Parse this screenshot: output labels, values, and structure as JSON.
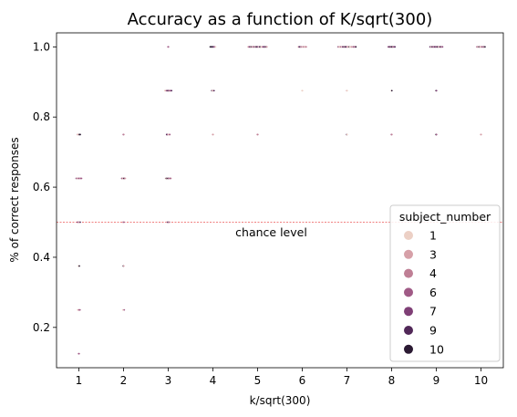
{
  "chart_data": {
    "type": "scatter",
    "title": "Accuracy as a function of K/sqrt(300)",
    "xlabel": "k/sqrt(300)",
    "ylabel": "% of correct responses",
    "xlim": [
      0.5,
      10.5
    ],
    "ylim": [
      0.085,
      1.04
    ],
    "xticks": [
      "1",
      "2",
      "3",
      "4",
      "5",
      "6",
      "7",
      "8",
      "9",
      "10"
    ],
    "yticks": [
      "0.2",
      "0.4",
      "0.6",
      "0.8",
      "1.0"
    ],
    "grid": false,
    "legend": {
      "title": "subject_number",
      "placement": "lower-right",
      "entries": [
        {
          "label": "1",
          "color": "#ecd0c5"
        },
        {
          "label": "3",
          "color": "#d6a0a8"
        },
        {
          "label": "4",
          "color": "#bf7f95"
        },
        {
          "label": "6",
          "color": "#a05a86"
        },
        {
          "label": "7",
          "color": "#7f3f76"
        },
        {
          "label": "9",
          "color": "#512858"
        },
        {
          "label": "10",
          "color": "#2b1a33"
        }
      ]
    },
    "reference_line": {
      "y": 0.5,
      "color": "#f08080",
      "label": "chance level",
      "label_x": 5.0,
      "label_y": 0.47
    },
    "clusters": [
      {
        "x": 1,
        "y": 0.125,
        "spread": 0.01
      },
      {
        "x": 1,
        "y": 0.25,
        "spread": 0.05
      },
      {
        "x": 1,
        "y": 0.375,
        "spread": 0.02
      },
      {
        "x": 1,
        "y": 0.5,
        "spread": 0.06
      },
      {
        "x": 1,
        "y": 0.625,
        "spread": 0.12
      },
      {
        "x": 1,
        "y": 0.75,
        "spread": 0.06
      },
      {
        "x": 2,
        "y": 0.25,
        "spread": 0.03
      },
      {
        "x": 2,
        "y": 0.375,
        "spread": 0.01
      },
      {
        "x": 2,
        "y": 0.5,
        "spread": 0.02
      },
      {
        "x": 2,
        "y": 0.625,
        "spread": 0.08
      },
      {
        "x": 2,
        "y": 0.75,
        "spread": 0.01
      },
      {
        "x": 3,
        "y": 0.5,
        "spread": 0.06
      },
      {
        "x": 3,
        "y": 0.625,
        "spread": 0.12
      },
      {
        "x": 3,
        "y": 0.75,
        "spread": 0.07
      },
      {
        "x": 3,
        "y": 0.875,
        "spread": 0.15
      },
      {
        "x": 3,
        "y": 1.0,
        "spread": 0.01
      },
      {
        "x": 4,
        "y": 0.75,
        "spread": 0.01
      },
      {
        "x": 4,
        "y": 0.875,
        "spread": 0.05
      },
      {
        "x": 4,
        "y": 1.0,
        "spread": 0.12
      },
      {
        "x": 5,
        "y": 0.75,
        "spread": 0.01
      },
      {
        "x": 5,
        "y": 1.0,
        "spread": 0.42
      },
      {
        "x": 6,
        "y": 0.875,
        "spread": 0.01
      },
      {
        "x": 6,
        "y": 1.0,
        "spread": 0.18
      },
      {
        "x": 7,
        "y": 0.75,
        "spread": 0.01
      },
      {
        "x": 7,
        "y": 0.875,
        "spread": 0.01
      },
      {
        "x": 7,
        "y": 1.0,
        "spread": 0.4
      },
      {
        "x": 8,
        "y": 0.75,
        "spread": 0.01
      },
      {
        "x": 8,
        "y": 0.875,
        "spread": 0.01
      },
      {
        "x": 8,
        "y": 1.0,
        "spread": 0.15
      },
      {
        "x": 9,
        "y": 0.75,
        "spread": 0.01
      },
      {
        "x": 9,
        "y": 0.875,
        "spread": 0.01
      },
      {
        "x": 9,
        "y": 1.0,
        "spread": 0.28
      },
      {
        "x": 10,
        "y": 0.75,
        "spread": 0.01
      },
      {
        "x": 10,
        "y": 1.0,
        "spread": 0.18
      }
    ]
  }
}
